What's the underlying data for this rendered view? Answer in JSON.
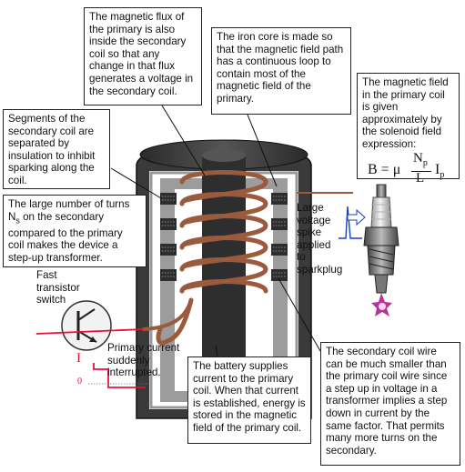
{
  "annotations": {
    "flux_note": "The magnetic flux of the primary is also inside the secondary coil so that any change in that flux generates a voltage in the secondary coil.",
    "core_note": "The iron core is made so that the magnetic field path has a continuous loop to contain most of the magnetic field of the primary.",
    "field_note": "The magnetic field in the primary coil is given approximately by the solenoid field expression:",
    "segments_note": "Segments of the secondary coil are separated by insulation to inhibit sparking along the coil.",
    "turns_note_a": "The large number of turns N",
    "turns_note_sub": "s",
    "turns_note_b": " on the secondary compared to the primary coil makes the device a step-up transformer.",
    "battery_note": "The battery supplies current to the primary coil. When that current is established, energy is stored in the magnetic field of the primary coil.",
    "secondary_wire_note": "The secondary coil wire can be much smaller than the primary coil wire since a step up in voltage in a transformer implies a step down in current by the same factor. That permits many more turns on the secondary."
  },
  "formula": {
    "lhs": "B = μ",
    "numerator": "N",
    "numerator_sub": "p",
    "denominator": "L",
    "current": "I",
    "current_sub": "p"
  },
  "labels": {
    "spike": "Large\nvoltage\nspike\napplied\nto\nsparkplug",
    "switch": "Fast\ntransistor\nswitch",
    "primary_current": "Primary current\nsuddenly\ninterrupted.",
    "current_symbol": "I",
    "zero": "0"
  },
  "colors": {
    "coil_copper": "#9b5a3c",
    "signal_red": "#e8103a",
    "housing": "#333333",
    "spark": "#b9329c"
  }
}
